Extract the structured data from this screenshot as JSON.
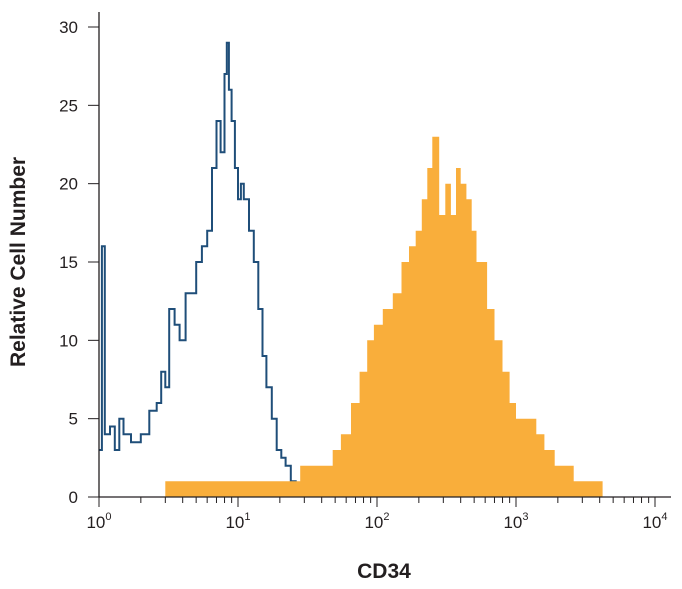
{
  "chart_data": {
    "type": "area",
    "xlabel": "CD34",
    "ylabel": "Relative Cell Number",
    "xscale": "log",
    "xlim": [
      1,
      10000
    ],
    "ylim": [
      0,
      30
    ],
    "x_ticks": [
      {
        "value": 1,
        "base": "10",
        "exp": "0"
      },
      {
        "value": 10,
        "base": "10",
        "exp": "1"
      },
      {
        "value": 100,
        "base": "10",
        "exp": "2"
      },
      {
        "value": 1000,
        "base": "10",
        "exp": "3"
      },
      {
        "value": 10000,
        "base": "10",
        "exp": "4"
      }
    ],
    "y_ticks": [
      "0",
      "5",
      "10",
      "15",
      "20",
      "25",
      "30"
    ],
    "grid": false,
    "legend": "none",
    "series": [
      {
        "style": "outline",
        "color": "#1f4e79",
        "x": [
          1.0,
          1.05,
          1.1,
          1.2,
          1.3,
          1.4,
          1.5,
          1.7,
          2.0,
          2.3,
          2.6,
          2.8,
          3.0,
          3.2,
          3.5,
          3.8,
          4.2,
          4.6,
          5.0,
          5.5,
          6.0,
          6.5,
          7.0,
          7.5,
          8.0,
          8.3,
          8.6,
          9.0,
          9.5,
          10.0,
          10.5,
          11.0,
          12.0,
          13.0,
          14.0,
          15.0,
          16.0,
          17.5,
          19.0,
          20.5,
          22.0,
          24.0,
          26.0
        ],
        "values": [
          3,
          16,
          4,
          4.5,
          3,
          5,
          4,
          3.5,
          4,
          5.5,
          6,
          8,
          7,
          12,
          11,
          10,
          13,
          13,
          15,
          16,
          17,
          21,
          24,
          22,
          27,
          29,
          26,
          24,
          21,
          19,
          20,
          19,
          17,
          15,
          12,
          9,
          7,
          5,
          3,
          2.5,
          2,
          1,
          0
        ]
      },
      {
        "style": "filled",
        "color": "#f9ae3b",
        "x": [
          3.0,
          4.0,
          5.0,
          6.0,
          8.0,
          10.0,
          12.0,
          15.0,
          19.0,
          23.0,
          28.0,
          33.0,
          40.0,
          48.0,
          55.0,
          65.0,
          75.0,
          85.0,
          95.0,
          110.0,
          130.0,
          150.0,
          170.0,
          190.0,
          210.0,
          230.0,
          250.0,
          280.0,
          310.0,
          340.0,
          370.0,
          400.0,
          440.0,
          480.0,
          520.0,
          570.0,
          620.0,
          700.0,
          800.0,
          900.0,
          1000.0,
          1200.0,
          1400.0,
          1600.0,
          1900.0,
          2200.0,
          2600.0,
          3000.0,
          3500.0,
          4000.0,
          4200.0
        ],
        "values": [
          1,
          1,
          1,
          1,
          1,
          1,
          1,
          1,
          1,
          1,
          2,
          2,
          2,
          3,
          4,
          6,
          8,
          10,
          11,
          12,
          13,
          15,
          16,
          17,
          19,
          21,
          23,
          18,
          20,
          18,
          21,
          20,
          19,
          17,
          15,
          15,
          12,
          10,
          8,
          6,
          5,
          5,
          4,
          3,
          2,
          2,
          1,
          1,
          1,
          1,
          0
        ]
      }
    ]
  }
}
